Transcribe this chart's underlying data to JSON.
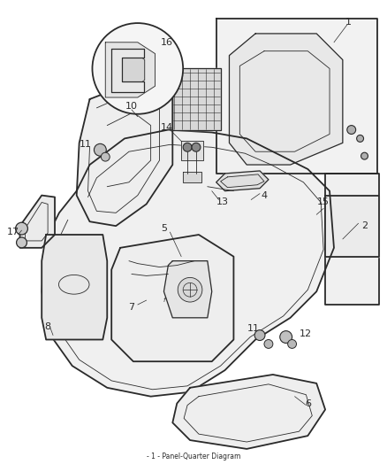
{
  "background_color": "#ffffff",
  "line_color": "#2a2a2a",
  "text_color": "#2a2a2a",
  "figsize": [
    4.39,
    5.33
  ],
  "dpi": 100,
  "footer_text": "- 1 - Panel-Quarter Diagram"
}
